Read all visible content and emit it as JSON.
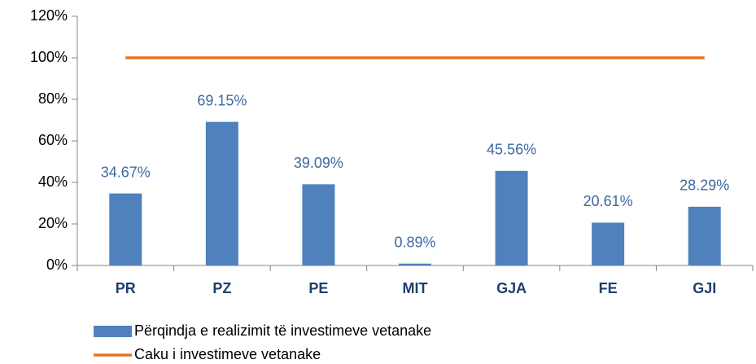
{
  "chart_data": {
    "type": "bar-line",
    "categories": [
      "PR",
      "PZ",
      "PE",
      "MIT",
      "GJA",
      "FE",
      "GJI"
    ],
    "series": [
      {
        "name": "Përqindja e realizimit të investimeve vetanake",
        "type": "bar",
        "color": "#4f81bd",
        "values": [
          34.67,
          69.15,
          39.09,
          0.89,
          45.56,
          20.61,
          28.29
        ],
        "value_labels": [
          "34.67%",
          "69.15%",
          "39.09%",
          "0.89%",
          "45.56%",
          "20.61%",
          "28.29%"
        ]
      },
      {
        "name": "Caku i investimeve vetanake",
        "type": "line",
        "color": "#e8731d",
        "values": [
          100,
          100,
          100,
          100,
          100,
          100,
          100
        ]
      }
    ],
    "ylim": [
      0,
      120
    ],
    "yticks": [
      {
        "value": 0,
        "label": "0%"
      },
      {
        "value": 20,
        "label": "20%"
      },
      {
        "value": 40,
        "label": "40%"
      },
      {
        "value": 60,
        "label": "60%"
      },
      {
        "value": 80,
        "label": "80%"
      },
      {
        "value": 100,
        "label": "100%"
      },
      {
        "value": 120,
        "label": "120%"
      }
    ],
    "legend": "bottom-left"
  }
}
